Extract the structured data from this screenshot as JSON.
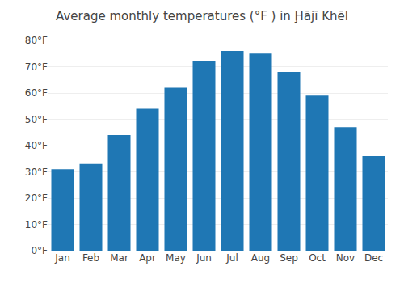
{
  "chart_data": {
    "type": "bar",
    "title": "Average monthly temperatures (°F ) in Ḩājī Khēl",
    "categories": [
      "Jan",
      "Feb",
      "Mar",
      "Apr",
      "May",
      "Jun",
      "Jul",
      "Aug",
      "Sep",
      "Oct",
      "Nov",
      "Dec"
    ],
    "values": [
      31,
      33,
      44,
      54,
      62,
      72,
      76,
      75,
      68,
      59,
      47,
      36
    ],
    "ylim": [
      0,
      80
    ],
    "yticks": [
      {
        "value": 0,
        "label": "0°F"
      },
      {
        "value": 10,
        "label": "10°F"
      },
      {
        "value": 20,
        "label": "20°F"
      },
      {
        "value": 30,
        "label": "30°F"
      },
      {
        "value": 40,
        "label": "40°F"
      },
      {
        "value": 50,
        "label": "50°F"
      },
      {
        "value": 60,
        "label": "60°F"
      },
      {
        "value": 70,
        "label": "70°F"
      },
      {
        "value": 80,
        "label": "80°F"
      }
    ],
    "grid": true
  }
}
